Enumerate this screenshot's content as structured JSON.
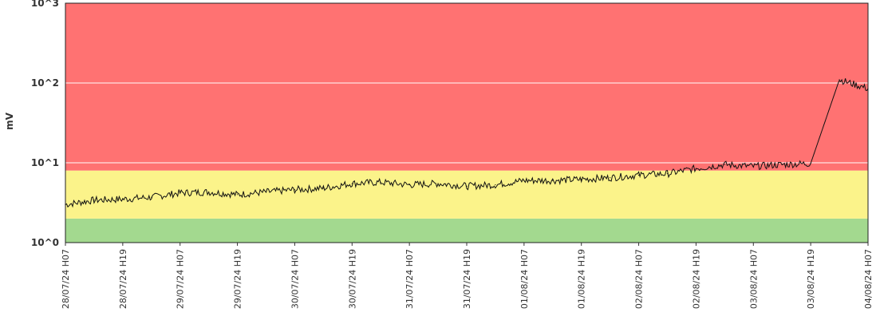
{
  "chart_data": {
    "type": "line",
    "title": "",
    "ylabel": "mV",
    "xlabel": "",
    "yscale": "log",
    "ylim": [
      1,
      1000
    ],
    "grid": "horizontal",
    "y_ticks": [
      {
        "value": 1,
        "label": "10^0"
      },
      {
        "value": 10,
        "label": "10^1"
      },
      {
        "value": 100,
        "label": "10^2"
      },
      {
        "value": 1000,
        "label": "10^3"
      }
    ],
    "x_ticks": [
      "28/07/24 H07",
      "28/07/24 H19",
      "29/07/24 H07",
      "29/07/24 H19",
      "30/07/24 H07",
      "30/07/24 H19",
      "31/07/24 H07",
      "31/07/24 H19",
      "01/08/24 H07",
      "01/08/24 H19",
      "02/08/24 H07",
      "02/08/24 H19",
      "03/08/24 H07",
      "03/08/24 H19",
      "04/08/24 H07"
    ],
    "bands": [
      {
        "name": "green",
        "from": 1,
        "to": 2,
        "color": "#a3d98f"
      },
      {
        "name": "yellow",
        "from": 2,
        "to": 8,
        "color": "#fbf38a"
      },
      {
        "name": "red",
        "from": 8,
        "to": 1000,
        "color": "#ff7272"
      }
    ],
    "series": [
      {
        "color": "#111111",
        "x": [
          "28/07/24 H07",
          "28/07/24 H13",
          "28/07/24 H19",
          "29/07/24 H01",
          "29/07/24 H07",
          "29/07/24 H13",
          "29/07/24 H19",
          "30/07/24 H01",
          "30/07/24 H07",
          "30/07/24 H13",
          "30/07/24 H19",
          "31/07/24 H01",
          "31/07/24 H07",
          "31/07/24 H13",
          "31/07/24 H19",
          "01/08/24 H01",
          "01/08/24 H07",
          "01/08/24 H13",
          "01/08/24 H19",
          "02/08/24 H01",
          "02/08/24 H07",
          "02/08/24 H13",
          "02/08/24 H19",
          "03/08/24 H01",
          "03/08/24 H07",
          "03/08/24 H13",
          "03/08/24 H19",
          "04/08/24 H01",
          "04/08/24 H07"
        ],
        "y": [
          3.0,
          3.4,
          3.5,
          3.7,
          4.2,
          4.3,
          4.0,
          4.3,
          4.6,
          4.8,
          5.5,
          5.7,
          5.3,
          5.5,
          5.1,
          5.3,
          6.0,
          6.0,
          6.2,
          6.5,
          7.0,
          7.3,
          8.5,
          9.5,
          9.0,
          9.5,
          9.8,
          110,
          85
        ]
      }
    ]
  }
}
